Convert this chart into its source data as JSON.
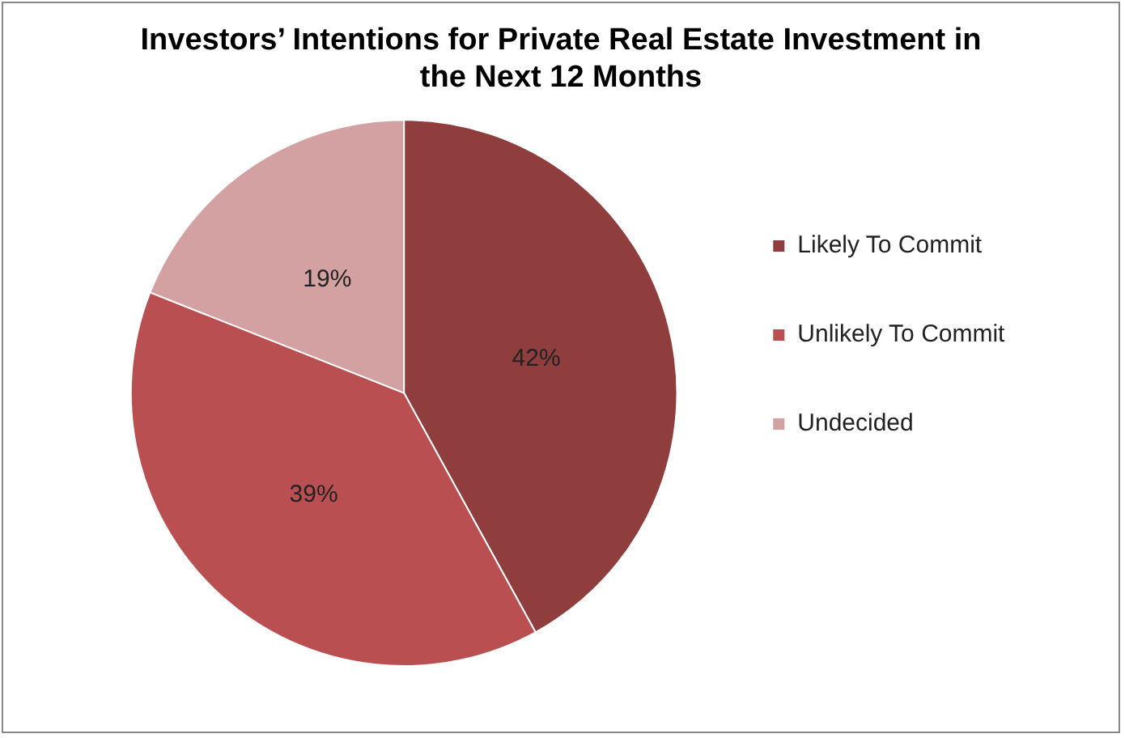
{
  "chart_data": {
    "type": "pie",
    "title": "Investors’ Intentions for Private Real Estate Investment in the Next 12 Months",
    "categories": [
      "Likely To Commit",
      "Unlikely To Commit",
      "Undecided"
    ],
    "values": [
      42,
      39,
      19
    ],
    "colors": [
      "#8f3d3d",
      "#b94f50",
      "#d3a1a2"
    ],
    "value_labels": [
      "42%",
      "39%",
      "19%"
    ],
    "legend": "right"
  }
}
